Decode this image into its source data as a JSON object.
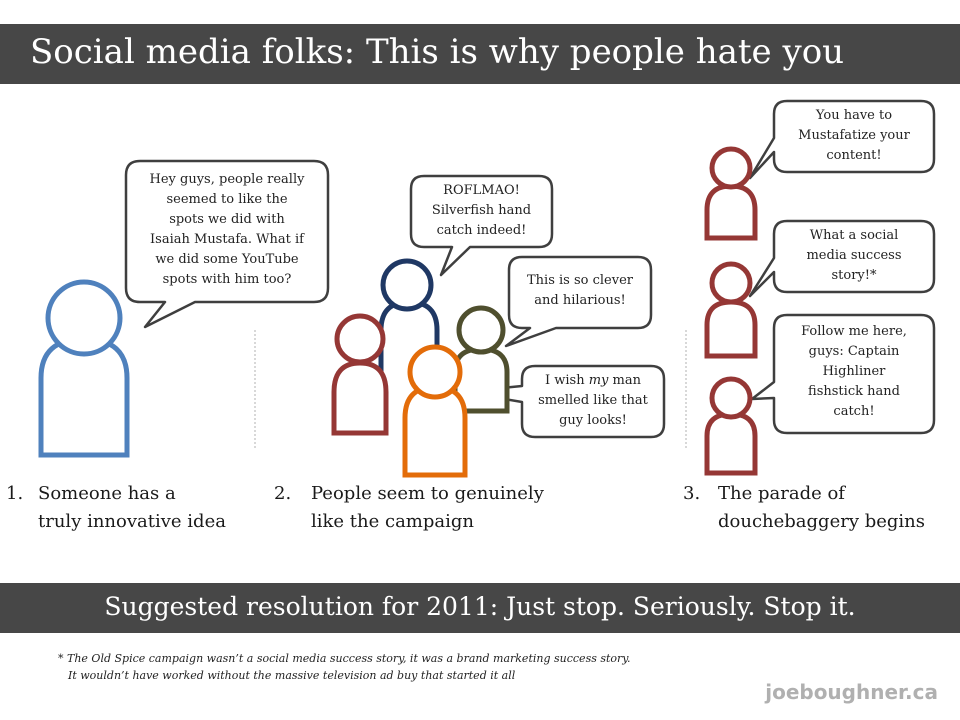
{
  "title": "Social media folks: This is why people hate you",
  "panels": [
    {
      "number": "1.",
      "caption_line1": "Someone has a",
      "caption_line2": "truly innovative idea",
      "bubbles": [
        [
          "Hey guys, people really",
          "seemed to like  the",
          "spots we did with",
          "Isaiah Mustafa.  What if",
          "we did some YouTube",
          "spots with him too?"
        ]
      ]
    },
    {
      "number": "2.",
      "caption_line1": "People seem to genuinely",
      "caption_line2": "like the campaign",
      "bubbles": [
        [
          "ROFLMAO!",
          "Silverfish hand",
          "catch indeed!"
        ],
        [
          "This is so clever",
          "and hilarious!"
        ],
        {
          "line1_before": "I wish ",
          "line1_emphasis": "my",
          "line1_after": " man",
          "line2": "smelled like that",
          "line3": "guy looks!"
        }
      ]
    },
    {
      "number": "3.",
      "caption_line1": "The parade of",
      "caption_line2": "douchebaggery begins",
      "bubbles": [
        [
          "You have to",
          "Mustafatize your",
          "content!"
        ],
        [
          "What a social",
          "media success",
          "story!*"
        ],
        [
          "Follow me here,",
          "guys: Captain",
          "Highliner",
          "fishstick hand",
          "catch!"
        ]
      ]
    }
  ],
  "resolution": "Suggested resolution for 2011: Just stop. Seriously. Stop it.",
  "footnote": {
    "line1": "* The Old Spice campaign wasn’t a social media success story, it was a brand marketing success story.",
    "line2": "It wouldn’t have worked without the massive television ad buy that started it all"
  },
  "signature": "joeboughner.ca",
  "colors": {
    "banner": "#474747",
    "person_blue": "#4f81bd",
    "person_navy": "#1f3864",
    "person_red": "#953735",
    "person_olive": "#4f4f2e",
    "person_orange": "#e36c09",
    "bubble_stroke": "#3f3f3f"
  }
}
